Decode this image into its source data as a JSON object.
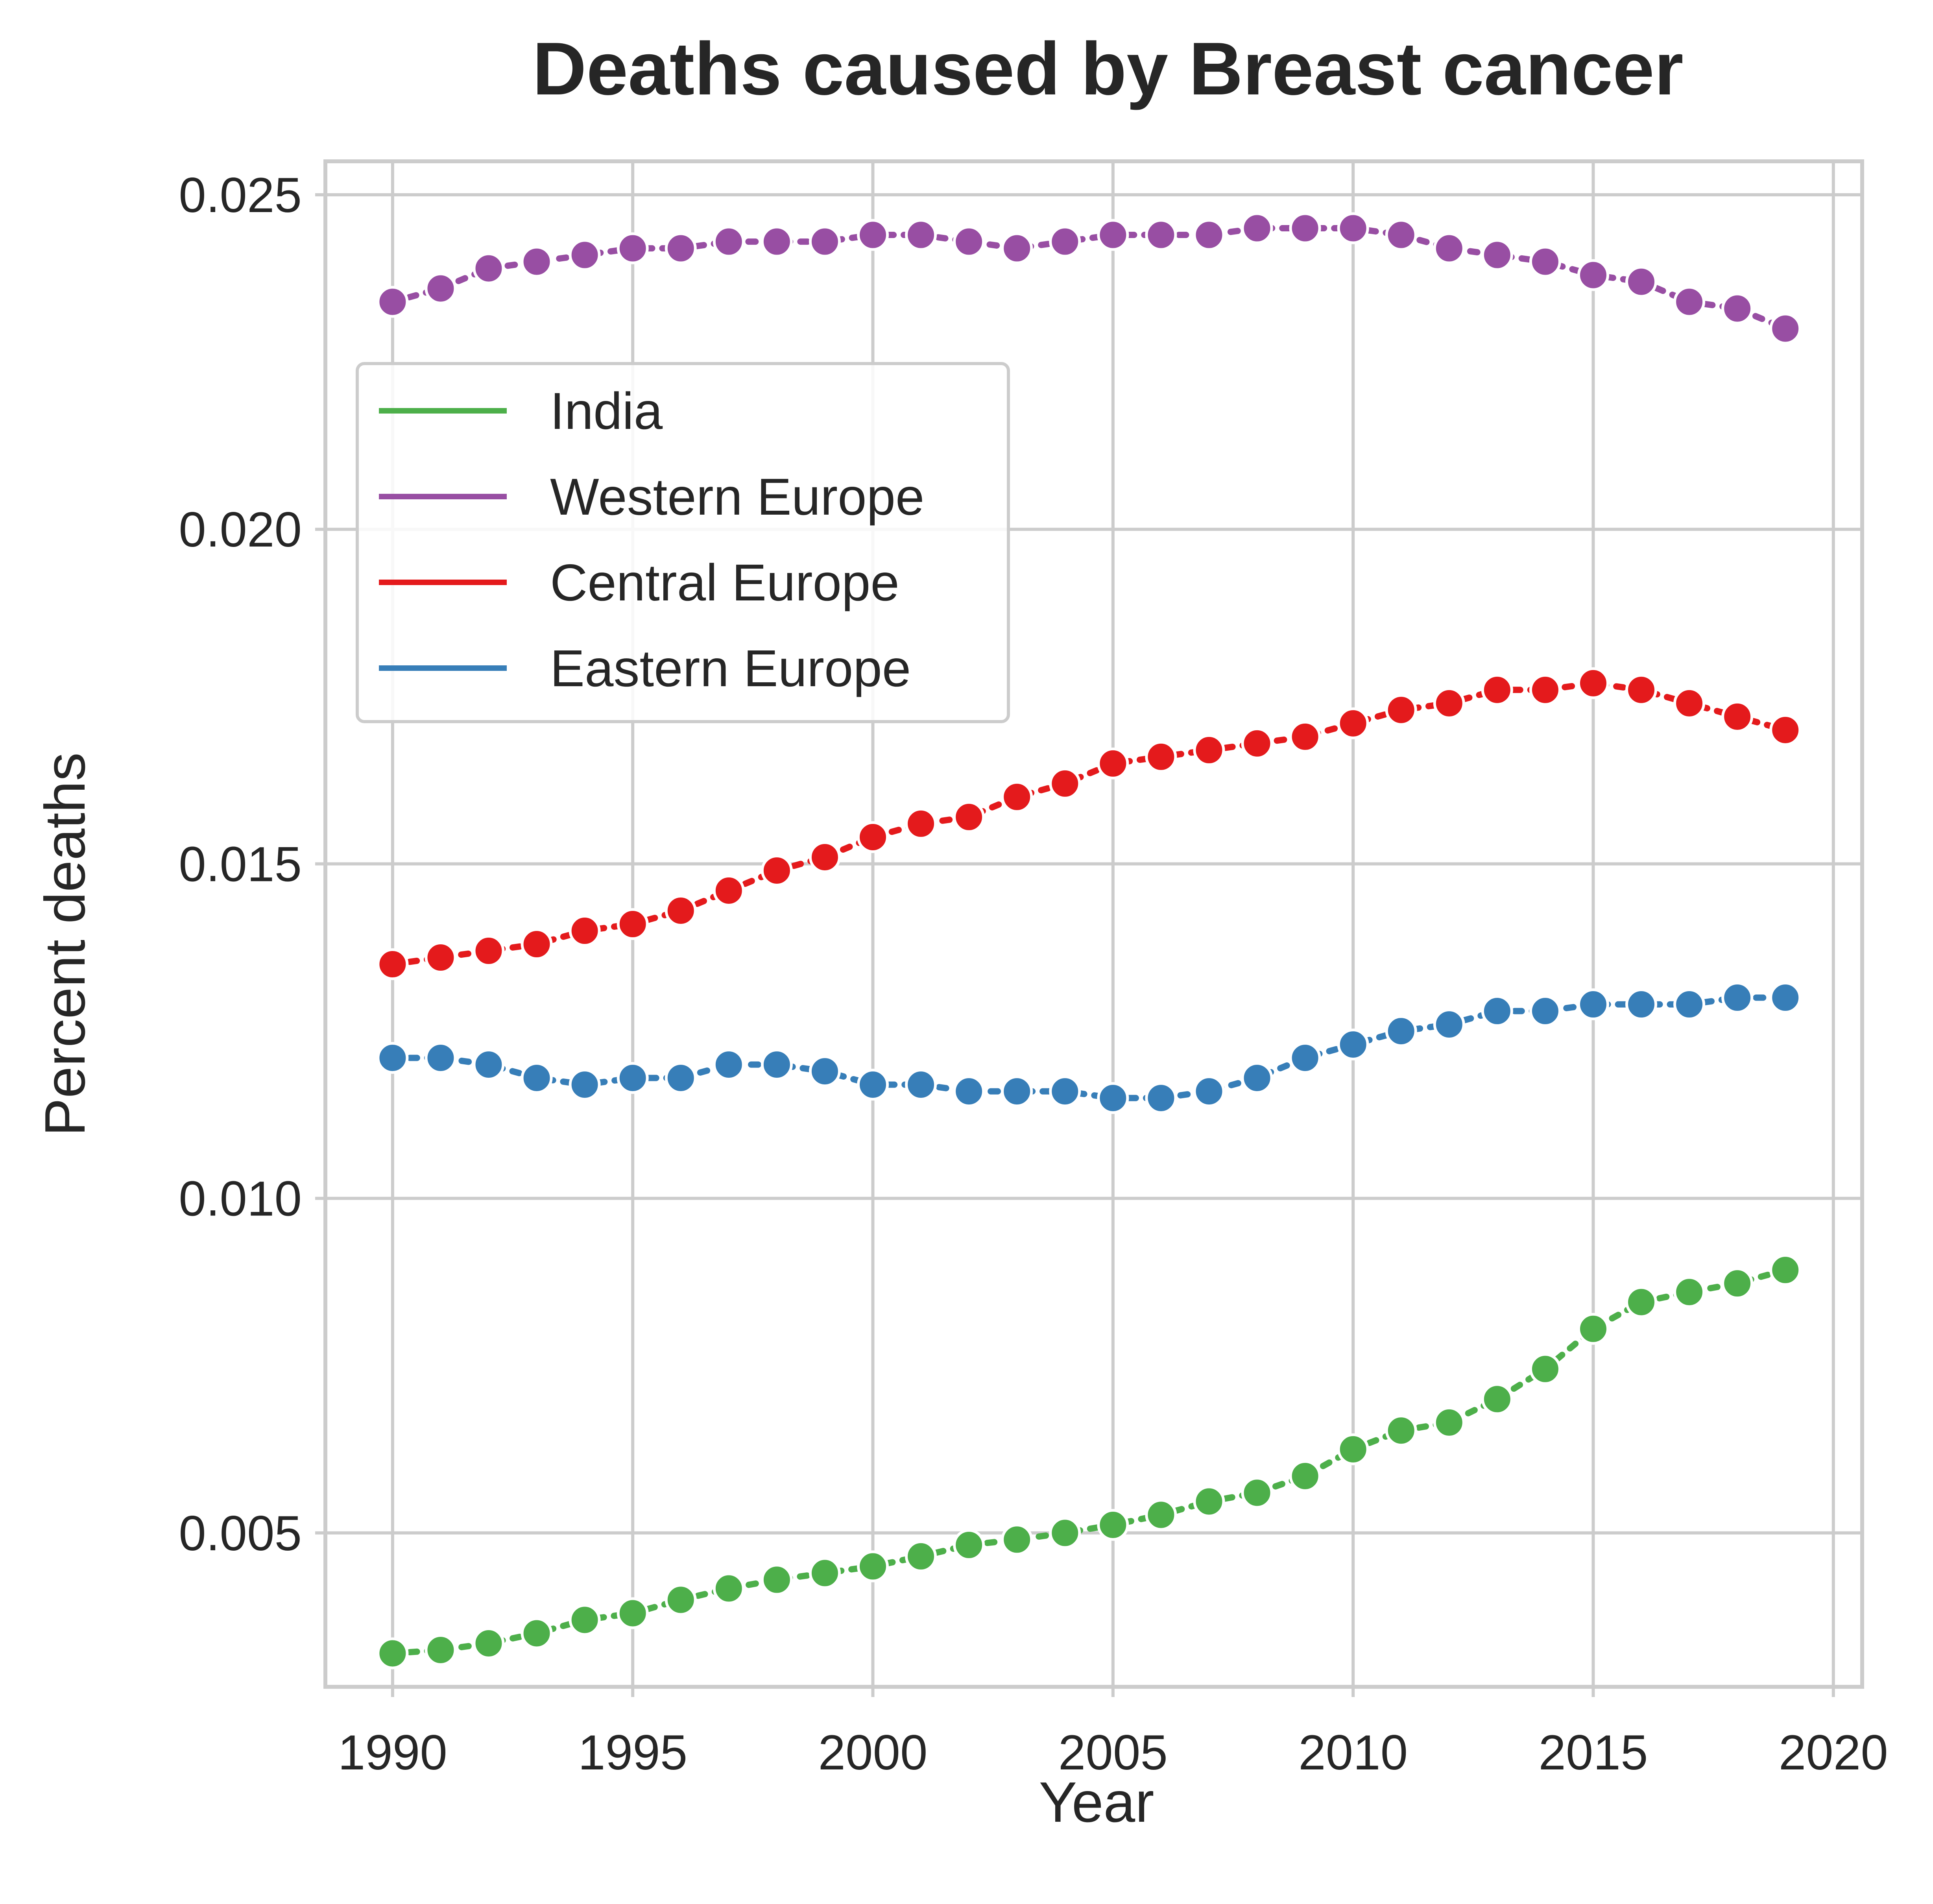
{
  "chart_data": {
    "type": "line",
    "title": "Deaths caused by Breast cancer",
    "xlabel": "Year",
    "ylabel": "Percent deaths",
    "xlim": [
      1988.6,
      2020.6
    ],
    "ylim": [
      0.0027,
      0.0255
    ],
    "x_ticks": [
      1990,
      1995,
      2000,
      2005,
      2010,
      2015,
      2020
    ],
    "x_tick_labels": [
      "1990",
      "1995",
      "2000",
      "2005",
      "2010",
      "2015",
      "2020"
    ],
    "y_ticks": [
      0.005,
      0.01,
      0.015,
      0.02,
      0.025
    ],
    "y_tick_labels": [
      "0.005",
      "0.010",
      "0.015",
      "0.020",
      "0.025"
    ],
    "grid": true,
    "legend_position": "upper-left",
    "line_style": "dotted with circle markers",
    "x": [
      1990,
      1991,
      1992,
      1993,
      1994,
      1995,
      1996,
      1997,
      1998,
      1999,
      2000,
      2001,
      2002,
      2003,
      2004,
      2005,
      2006,
      2007,
      2008,
      2009,
      2010,
      2011,
      2012,
      2013,
      2014,
      2015,
      2016,
      2017,
      2018,
      2019
    ],
    "series": [
      {
        "name": "India",
        "color": "#4daf4a",
        "values": [
          0.0032,
          0.00325,
          0.00335,
          0.0035,
          0.0037,
          0.0038,
          0.004,
          0.00417,
          0.0043,
          0.0044,
          0.0045,
          0.00465,
          0.00482,
          0.0049,
          0.005,
          0.00512,
          0.00527,
          0.00547,
          0.0056,
          0.00585,
          0.00625,
          0.00653,
          0.00665,
          0.007,
          0.00745,
          0.00805,
          0.00845,
          0.0086,
          0.00873,
          0.00893
        ]
      },
      {
        "name": "Western Europe",
        "color": "#984ea3",
        "values": [
          0.0234,
          0.0236,
          0.0239,
          0.024,
          0.0241,
          0.0242,
          0.0242,
          0.0243,
          0.0243,
          0.0243,
          0.0244,
          0.0244,
          0.0243,
          0.0242,
          0.0243,
          0.0244,
          0.0244,
          0.0244,
          0.0245,
          0.0245,
          0.0245,
          0.0244,
          0.0242,
          0.0241,
          0.024,
          0.0238,
          0.0237,
          0.0234,
          0.0233,
          0.023
        ]
      },
      {
        "name": "Central Europe",
        "color": "#e41a1c",
        "values": [
          0.0135,
          0.0136,
          0.0137,
          0.0138,
          0.014,
          0.0141,
          0.0143,
          0.0146,
          0.0149,
          0.0151,
          0.0154,
          0.0156,
          0.0157,
          0.016,
          0.0162,
          0.0165,
          0.0166,
          0.0167,
          0.0168,
          0.0169,
          0.0171,
          0.0173,
          0.0174,
          0.0176,
          0.0176,
          0.0177,
          0.0176,
          0.0174,
          0.0172,
          0.017
        ]
      },
      {
        "name": "Eastern Europe",
        "color": "#377eb8",
        "values": [
          0.0121,
          0.0121,
          0.012,
          0.0118,
          0.0117,
          0.0118,
          0.0118,
          0.012,
          0.012,
          0.0119,
          0.0117,
          0.0117,
          0.0116,
          0.0116,
          0.0116,
          0.0115,
          0.0115,
          0.0116,
          0.0118,
          0.0121,
          0.0123,
          0.0125,
          0.0126,
          0.0128,
          0.0128,
          0.0129,
          0.0129,
          0.0129,
          0.013,
          0.013
        ]
      }
    ]
  }
}
